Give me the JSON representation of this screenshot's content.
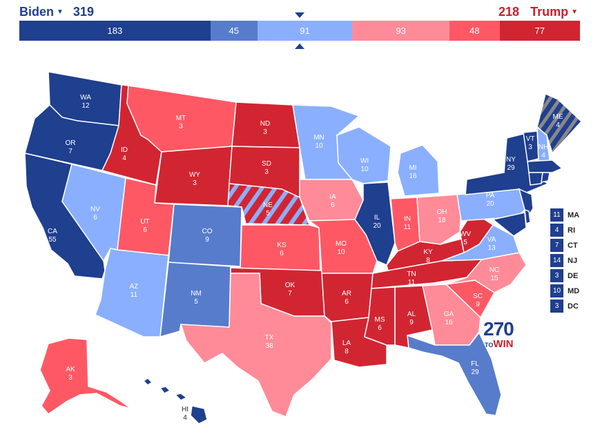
{
  "header": {
    "left_candidate": "Biden",
    "left_total": "319",
    "right_candidate": "Trump",
    "right_total": "218"
  },
  "bar_segments": [
    {
      "label": "183",
      "value": 183,
      "color": "#1f3f8f"
    },
    {
      "label": "45",
      "value": 45,
      "color": "#577ccc"
    },
    {
      "label": "91",
      "value": 91,
      "color": "#8aafff"
    },
    {
      "label": "93",
      "value": 93,
      "color": "#ff8b98"
    },
    {
      "label": "48",
      "value": 48,
      "color": "#ff5865"
    },
    {
      "label": "77",
      "value": 77,
      "color": "#d22532"
    }
  ],
  "colors": {
    "safe_dem": "#1f3f8f",
    "likely_dem": "#577ccc",
    "lean_dem": "#8aafff",
    "lean_rep": "#ff8b98",
    "likely_rep": "#ff5865",
    "safe_rep": "#d22532"
  },
  "states": {
    "WA": {
      "abbr": "WA",
      "ev": "12"
    },
    "OR": {
      "abbr": "OR",
      "ev": "7"
    },
    "CA": {
      "abbr": "CA",
      "ev": "55"
    },
    "ID": {
      "abbr": "ID",
      "ev": "4"
    },
    "NV": {
      "abbr": "NV",
      "ev": "6"
    },
    "MT": {
      "abbr": "MT",
      "ev": "3"
    },
    "WY": {
      "abbr": "WY",
      "ev": "3"
    },
    "UT": {
      "abbr": "UT",
      "ev": "6"
    },
    "AZ": {
      "abbr": "AZ",
      "ev": "11"
    },
    "CO": {
      "abbr": "CO",
      "ev": "9"
    },
    "NM": {
      "abbr": "NM",
      "ev": "5"
    },
    "ND": {
      "abbr": "ND",
      "ev": "3"
    },
    "SD": {
      "abbr": "SD",
      "ev": "3"
    },
    "NE": {
      "abbr": "NE",
      "ev": "5"
    },
    "KS": {
      "abbr": "KS",
      "ev": "6"
    },
    "OK": {
      "abbr": "OK",
      "ev": "7"
    },
    "TX": {
      "abbr": "TX",
      "ev": "38"
    },
    "MN": {
      "abbr": "MN",
      "ev": "10"
    },
    "IA": {
      "abbr": "IA",
      "ev": "6"
    },
    "MO": {
      "abbr": "MO",
      "ev": "10"
    },
    "AR": {
      "abbr": "AR",
      "ev": "6"
    },
    "LA": {
      "abbr": "LA",
      "ev": "8"
    },
    "WI": {
      "abbr": "WI",
      "ev": "10"
    },
    "IL": {
      "abbr": "IL",
      "ev": "20"
    },
    "MI": {
      "abbr": "MI",
      "ev": "16"
    },
    "IN": {
      "abbr": "IN",
      "ev": "11"
    },
    "OH": {
      "abbr": "OH",
      "ev": "18"
    },
    "KY": {
      "abbr": "KY",
      "ev": "8"
    },
    "TN": {
      "abbr": "TN",
      "ev": "11"
    },
    "MS": {
      "abbr": "MS",
      "ev": "6"
    },
    "AL": {
      "abbr": "AL",
      "ev": "9"
    },
    "GA": {
      "abbr": "GA",
      "ev": "16"
    },
    "FL": {
      "abbr": "FL",
      "ev": "29"
    },
    "SC": {
      "abbr": "SC",
      "ev": "9"
    },
    "NC": {
      "abbr": "NC",
      "ev": "15"
    },
    "VA": {
      "abbr": "VA",
      "ev": "13"
    },
    "WV": {
      "abbr": "WV",
      "ev": "5"
    },
    "PA": {
      "abbr": "PA",
      "ev": "20"
    },
    "NY": {
      "abbr": "NY",
      "ev": "29"
    },
    "VT": {
      "abbr": "VT",
      "ev": "3"
    },
    "NH": {
      "abbr": "NH",
      "ev": "4"
    },
    "ME": {
      "abbr": "ME",
      "ev": "4"
    },
    "AK": {
      "abbr": "AK",
      "ev": "3"
    },
    "HI": {
      "abbr": "HI",
      "ev": "4"
    }
  },
  "east_states": [
    {
      "ev": "11",
      "abbr": "MA"
    },
    {
      "ev": "4",
      "abbr": "RI"
    },
    {
      "ev": "7",
      "abbr": "CT"
    },
    {
      "ev": "14",
      "abbr": "NJ"
    },
    {
      "ev": "3",
      "abbr": "DE"
    },
    {
      "ev": "10",
      "abbr": "MD"
    },
    {
      "ev": "3",
      "abbr": "DC"
    }
  ],
  "logo": {
    "number": "270",
    "to": "TO",
    "win": "WIN"
  }
}
